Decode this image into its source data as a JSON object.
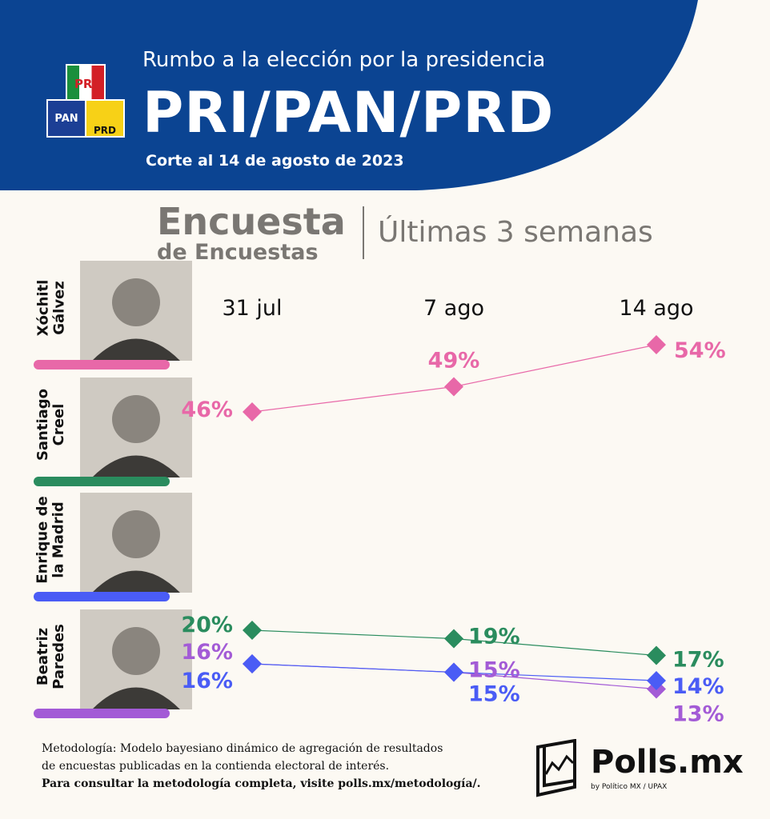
{
  "header": {
    "kicker": "Rumbo a la elección por la presidencia",
    "title": "PRI/PAN/PRD",
    "date": "Corte al 14 de agosto de 2023",
    "party_logos": [
      "PRI",
      "PAN",
      "PRD"
    ],
    "bg_color": "#0b4492"
  },
  "subheader": {
    "line1": "Encuesta",
    "line2": "de Encuestas",
    "period": "Últimas 3 semanas"
  },
  "candidates": [
    {
      "name": "Xóchitl\nGálvez",
      "color": "#e868a8"
    },
    {
      "name": "Santiago\nCreel",
      "color": "#2a8c5e"
    },
    {
      "name": "Enrique de\nla Madrid",
      "color": "#4a5cf5"
    },
    {
      "name": "Beatriz\nParedes",
      "color": "#a35bd6"
    }
  ],
  "chart_data": {
    "type": "line",
    "categories": [
      "31 jul",
      "7 ago",
      "14 ago"
    ],
    "grid": false,
    "series": [
      {
        "name": "Xóchitl Gálvez",
        "color": "#e868a8",
        "values": [
          46,
          49,
          54
        ],
        "labels": [
          "46%",
          "49%",
          "54%"
        ]
      },
      {
        "name": "Santiago Creel",
        "color": "#2a8c5e",
        "values": [
          20,
          19,
          17
        ],
        "labels": [
          "20%",
          "19%",
          "17%"
        ]
      },
      {
        "name": "Beatriz Paredes",
        "color": "#a35bd6",
        "values": [
          16,
          15,
          13
        ],
        "labels": [
          "16%",
          "15%",
          "13%"
        ]
      },
      {
        "name": "Enrique de la Madrid",
        "color": "#4a5cf5",
        "values": [
          16,
          15,
          14
        ],
        "labels": [
          "16%",
          "15%",
          "14%"
        ]
      }
    ]
  },
  "footer": {
    "methodology": "Metodología: Modelo bayesiano dinámico de agregación de resultados",
    "methodology2": "de encuestas publicadas en la contienda electoral de interés.",
    "link_text": "Para consultar la metodología completa, visite polls.mx/metodología/.",
    "brand": "Polls.mx",
    "brand_sub": "by Político MX / UPAX"
  }
}
